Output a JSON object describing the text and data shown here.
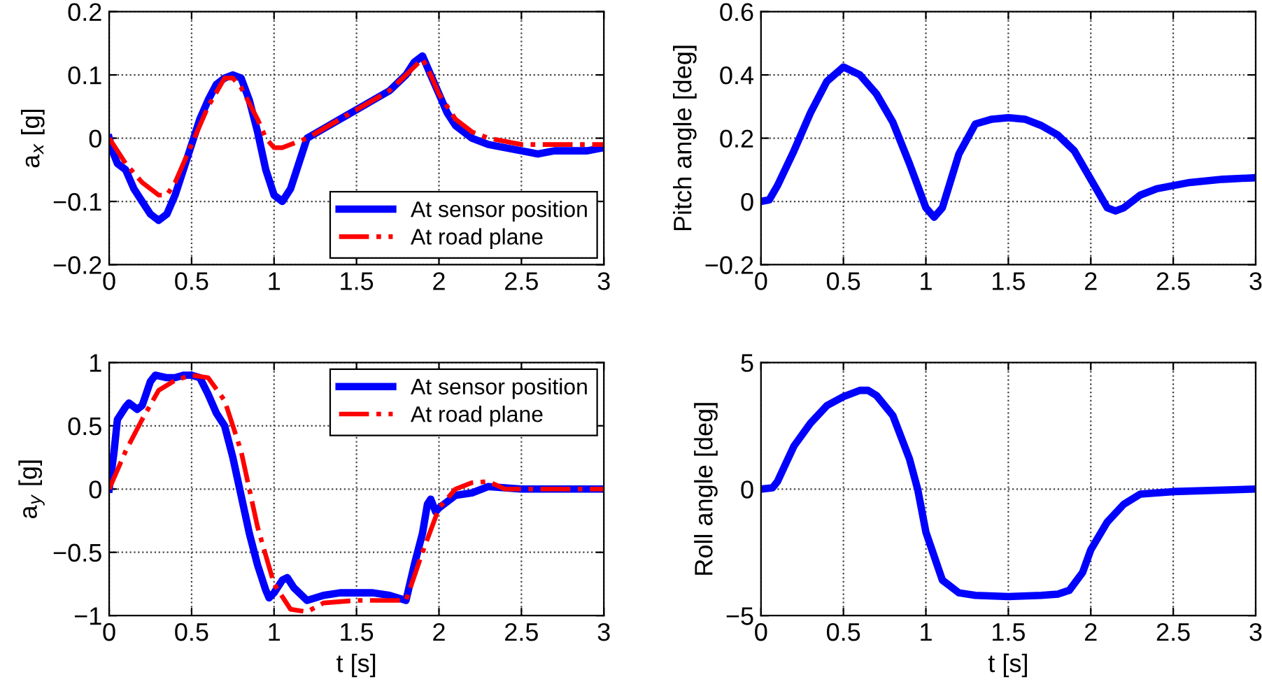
{
  "chart_data": [
    {
      "type": "line",
      "ylabel": "a$_{x}$ [g]",
      "xlim": [
        0,
        3
      ],
      "xticks": [
        0,
        0.5,
        1,
        1.5,
        2,
        2.5,
        3
      ],
      "ylim": [
        -0.2,
        0.2
      ],
      "yticks": [
        -0.2,
        -0.1,
        0,
        0.1,
        0.2
      ],
      "grid": true,
      "legend": "bottom right",
      "series": [
        {
          "name": "At sensor position",
          "color": "#0000ff",
          "line_style": "solid",
          "x": [
            0,
            0.02,
            0.05,
            0.1,
            0.15,
            0.2,
            0.25,
            0.3,
            0.35,
            0.4,
            0.45,
            0.5,
            0.55,
            0.6,
            0.65,
            0.7,
            0.75,
            0.8,
            0.85,
            0.9,
            0.95,
            1.0,
            1.05,
            1.1,
            1.15,
            1.2,
            1.3,
            1.4,
            1.5,
            1.6,
            1.7,
            1.8,
            1.85,
            1.9,
            1.95,
            2.0,
            2.05,
            2.1,
            2.2,
            2.3,
            2.4,
            2.5,
            2.6,
            2.7,
            2.8,
            2.9,
            3.0
          ],
          "values": [
            0,
            -0.02,
            -0.04,
            -0.05,
            -0.08,
            -0.1,
            -0.12,
            -0.13,
            -0.12,
            -0.09,
            -0.05,
            -0.01,
            0.03,
            0.06,
            0.085,
            0.095,
            0.1,
            0.095,
            0.06,
            0.01,
            -0.05,
            -0.09,
            -0.1,
            -0.08,
            -0.04,
            0.0,
            0.015,
            0.03,
            0.045,
            0.06,
            0.075,
            0.1,
            0.12,
            0.13,
            0.1,
            0.07,
            0.04,
            0.02,
            0.0,
            -0.01,
            -0.015,
            -0.02,
            -0.025,
            -0.02,
            -0.02,
            -0.02,
            -0.015
          ]
        },
        {
          "name": "At road plane",
          "color": "#ff0000",
          "line_style": "dashdot",
          "x": [
            0,
            0.1,
            0.2,
            0.3,
            0.35,
            0.4,
            0.5,
            0.6,
            0.7,
            0.75,
            0.8,
            0.9,
            0.95,
            1.0,
            1.05,
            1.1,
            1.2,
            1.3,
            1.5,
            1.7,
            1.8,
            1.9,
            1.95,
            2.0,
            2.1,
            2.2,
            2.3,
            2.5,
            3.0
          ],
          "values": [
            0,
            -0.04,
            -0.07,
            -0.09,
            -0.09,
            -0.07,
            -0.01,
            0.05,
            0.095,
            0.095,
            0.08,
            0.03,
            0.0,
            -0.015,
            -0.015,
            -0.01,
            0.0,
            0.015,
            0.045,
            0.075,
            0.1,
            0.125,
            0.1,
            0.07,
            0.03,
            0.01,
            0.0,
            -0.01,
            -0.01
          ]
        }
      ]
    },
    {
      "type": "line",
      "ylabel": "Pitch angle [deg]",
      "xlim": [
        0,
        3
      ],
      "xticks": [
        0,
        0.5,
        1,
        1.5,
        2,
        2.5,
        3
      ],
      "ylim": [
        -0.2,
        0.6
      ],
      "yticks": [
        -0.2,
        0,
        0.2,
        0.4,
        0.6
      ],
      "grid": true,
      "series": [
        {
          "color": "#0000ff",
          "line_style": "solid",
          "x": [
            0,
            0.05,
            0.1,
            0.2,
            0.3,
            0.4,
            0.5,
            0.6,
            0.7,
            0.8,
            0.9,
            1.0,
            1.05,
            1.1,
            1.2,
            1.3,
            1.4,
            1.5,
            1.6,
            1.7,
            1.8,
            1.9,
            2.0,
            2.1,
            2.15,
            2.2,
            2.3,
            2.4,
            2.6,
            2.8,
            3.0
          ],
          "values": [
            0,
            0.005,
            0.05,
            0.16,
            0.28,
            0.38,
            0.425,
            0.4,
            0.34,
            0.25,
            0.12,
            -0.02,
            -0.05,
            -0.02,
            0.15,
            0.245,
            0.26,
            0.265,
            0.26,
            0.24,
            0.21,
            0.16,
            0.07,
            -0.02,
            -0.03,
            -0.02,
            0.02,
            0.04,
            0.06,
            0.07,
            0.075
          ]
        }
      ]
    },
    {
      "type": "line",
      "ylabel": "a$_{y}$ [g]",
      "xlabel": "t [s]",
      "xlim": [
        0,
        3
      ],
      "xticks": [
        0,
        0.5,
        1,
        1.5,
        2,
        2.5,
        3
      ],
      "ylim": [
        -1,
        1
      ],
      "yticks": [
        -1,
        -0.5,
        0,
        0.5,
        1
      ],
      "grid": true,
      "legend": "top right",
      "series": [
        {
          "name": "At sensor position",
          "color": "#0000ff",
          "line_style": "solid",
          "x": [
            0,
            0.03,
            0.05,
            0.1,
            0.12,
            0.17,
            0.2,
            0.25,
            0.28,
            0.35,
            0.4,
            0.45,
            0.5,
            0.55,
            0.6,
            0.65,
            0.7,
            0.75,
            0.8,
            0.85,
            0.9,
            0.95,
            0.97,
            1.0,
            1.05,
            1.08,
            1.12,
            1.2,
            1.3,
            1.4,
            1.6,
            1.7,
            1.8,
            1.85,
            1.9,
            1.93,
            1.95,
            1.98,
            2.0,
            2.1,
            2.2,
            2.3,
            2.4,
            2.5,
            3.0
          ],
          "values": [
            0,
            0.3,
            0.55,
            0.65,
            0.68,
            0.63,
            0.66,
            0.85,
            0.9,
            0.88,
            0.88,
            0.9,
            0.9,
            0.88,
            0.75,
            0.6,
            0.5,
            0.25,
            -0.05,
            -0.35,
            -0.6,
            -0.8,
            -0.86,
            -0.82,
            -0.72,
            -0.7,
            -0.78,
            -0.88,
            -0.84,
            -0.82,
            -0.82,
            -0.84,
            -0.88,
            -0.6,
            -0.35,
            -0.12,
            -0.08,
            -0.18,
            -0.15,
            -0.05,
            -0.03,
            0.02,
            0.01,
            0.0,
            0.0
          ]
        },
        {
          "name": "At road plane",
          "color": "#ff0000",
          "line_style": "dashdot",
          "x": [
            0,
            0.1,
            0.2,
            0.3,
            0.4,
            0.5,
            0.6,
            0.7,
            0.8,
            0.9,
            1.0,
            1.1,
            1.2,
            1.3,
            1.5,
            1.8,
            1.9,
            2.0,
            2.1,
            2.2,
            2.3,
            2.4,
            3.0
          ],
          "values": [
            0,
            0.3,
            0.55,
            0.78,
            0.86,
            0.9,
            0.88,
            0.7,
            0.3,
            -0.3,
            -0.75,
            -0.95,
            -0.97,
            -0.9,
            -0.88,
            -0.88,
            -0.5,
            -0.15,
            0.0,
            0.05,
            0.06,
            0.0,
            0.0
          ]
        }
      ]
    },
    {
      "type": "line",
      "ylabel": "Roll angle [deg]",
      "xlabel": "t [s]",
      "xlim": [
        0,
        3
      ],
      "xticks": [
        0,
        0.5,
        1,
        1.5,
        2,
        2.5,
        3
      ],
      "ylim": [
        -5,
        5
      ],
      "yticks": [
        -5,
        0,
        5
      ],
      "grid": true,
      "series": [
        {
          "color": "#0000ff",
          "line_style": "solid",
          "x": [
            0,
            0.07,
            0.1,
            0.15,
            0.2,
            0.3,
            0.4,
            0.5,
            0.6,
            0.65,
            0.7,
            0.8,
            0.9,
            0.95,
            1.0,
            1.1,
            1.2,
            1.3,
            1.5,
            1.7,
            1.8,
            1.87,
            1.95,
            2.0,
            2.1,
            2.2,
            2.3,
            2.5,
            3.0
          ],
          "values": [
            0,
            0.05,
            0.3,
            1.0,
            1.7,
            2.6,
            3.3,
            3.65,
            3.9,
            3.9,
            3.7,
            2.9,
            1.2,
            0.0,
            -1.7,
            -3.6,
            -4.1,
            -4.2,
            -4.25,
            -4.2,
            -4.15,
            -4.0,
            -3.3,
            -2.4,
            -1.3,
            -0.6,
            -0.2,
            -0.1,
            0.0
          ]
        }
      ]
    }
  ]
}
